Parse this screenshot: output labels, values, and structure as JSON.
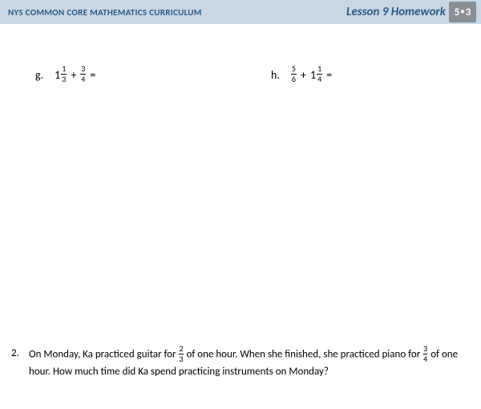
{
  "header": {
    "curriculum_label": "NYS COMMON CORE MATHEMATICS CURRICULUM",
    "lesson_title": "Lesson 9 Homework",
    "module_grade": "5",
    "module_number": "3",
    "header_bg": "#c9d7e4",
    "header_text_color": "#2a5a88",
    "badge_bg": "#8a8f94",
    "badge_text_color": "#ffffff"
  },
  "problems": {
    "g": {
      "letter": "g.",
      "term1": {
        "whole": "1",
        "num": "1",
        "den": "3"
      },
      "op": "+",
      "term2": {
        "num": "3",
        "den": "4"
      },
      "eq": "="
    },
    "h": {
      "letter": "h.",
      "term1": {
        "num": "5",
        "den": "6"
      },
      "op": "+",
      "term2": {
        "whole": "1",
        "num": "1",
        "den": "4"
      },
      "eq": "="
    }
  },
  "word_problem": {
    "number": "2.",
    "part1": "On Monday, Ka practiced guitar for ",
    "frac1": {
      "num": "2",
      "den": "3"
    },
    "part2": " of one hour.  When she finished, she practiced piano for ",
    "frac2": {
      "num": "3",
      "den": "4"
    },
    "part3": " of one hour.  How much time did Ka spend practicing instruments on Monday?"
  },
  "styling": {
    "page_bg": "#ffffff",
    "text_color": "#000000",
    "body_font_size": 13,
    "problem_font_size": 14,
    "frac_font_size": 10,
    "header_font_size": 11,
    "lesson_font_size": 15
  }
}
